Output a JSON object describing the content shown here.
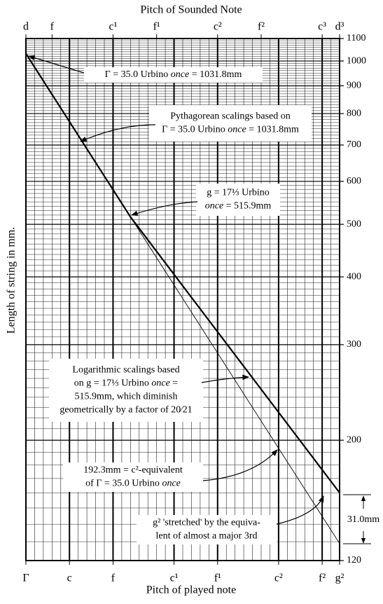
{
  "chart_data": {
    "type": "line",
    "title": "Pitch of Sounded Note",
    "xlabel": "Pitch of played note",
    "ylabel": "Length of string in mm.",
    "xlim": [
      0,
      36
    ],
    "xticks": [
      {
        "value": 0,
        "label": "Γ"
      },
      {
        "value": 5,
        "label": "c"
      },
      {
        "value": 10,
        "label": "f"
      },
      {
        "value": 17,
        "label": "c¹"
      },
      {
        "value": 22,
        "label": "f¹"
      },
      {
        "value": 29,
        "label": "c²"
      },
      {
        "value": 34,
        "label": "f²"
      },
      {
        "value": 36,
        "label": "g²"
      }
    ],
    "x2ticks": [
      {
        "value": 0,
        "label": "d"
      },
      {
        "value": 3,
        "label": "f"
      },
      {
        "value": 10,
        "label": "c¹"
      },
      {
        "value": 15,
        "label": "f¹"
      },
      {
        "value": 22,
        "label": "c²"
      },
      {
        "value": 27,
        "label": "f²"
      },
      {
        "value": 34,
        "label": "c³"
      },
      {
        "value": 36,
        "label": "d³"
      }
    ],
    "ylim": [
      120,
      1100
    ],
    "yticks": [
      120,
      200,
      300,
      400,
      500,
      600,
      700,
      800,
      900,
      1000,
      1100
    ],
    "log_y": true,
    "grid": true,
    "minor_grid": {
      "x_step": 1,
      "y_step": 10
    },
    "series": [
      {
        "color": "#000000",
        "x": [
          0,
          12,
          36
        ],
        "values": [
          1031.8,
          515.9,
          160
        ]
      },
      {
        "color": "#000000",
        "x": [
          12,
          36
        ],
        "values": [
          515.9,
          129
        ]
      }
    ],
    "annotations": [
      {
        "lines": [
          [
            "Γ = 35.0 Urbino ",
            "once",
            " = 1031.8mm"
          ]
        ]
      },
      {
        "lines": [
          [
            "Pythagorean scalings based on"
          ],
          [
            "Γ = 35.0 Urbino ",
            "once",
            " = 1031.8mm"
          ]
        ]
      },
      {
        "lines": [
          [
            "g = 17⅓ Urbino"
          ],
          [
            "",
            "once",
            " = 515.9mm"
          ]
        ]
      },
      {
        "lines": [
          [
            "Logarithmic scalings based"
          ],
          [
            "on g = 17⅓ Urbino ",
            "once",
            " ="
          ],
          [
            "515.9mm, which diminish"
          ],
          [
            "geometrically by a factor of 20⁄21"
          ]
        ]
      },
      {
        "lines": [
          [
            "192.3mm = c²-equivalent"
          ],
          [
            "of  Γ = 35.0 Urbino ",
            "once"
          ]
        ]
      },
      {
        "lines": [
          [
            "g² 'stretched' by the equiva-"
          ],
          [
            "lent of almost a major 3rd"
          ]
        ]
      },
      {
        "lines": [
          [
            "31.0mm"
          ]
        ]
      }
    ]
  }
}
